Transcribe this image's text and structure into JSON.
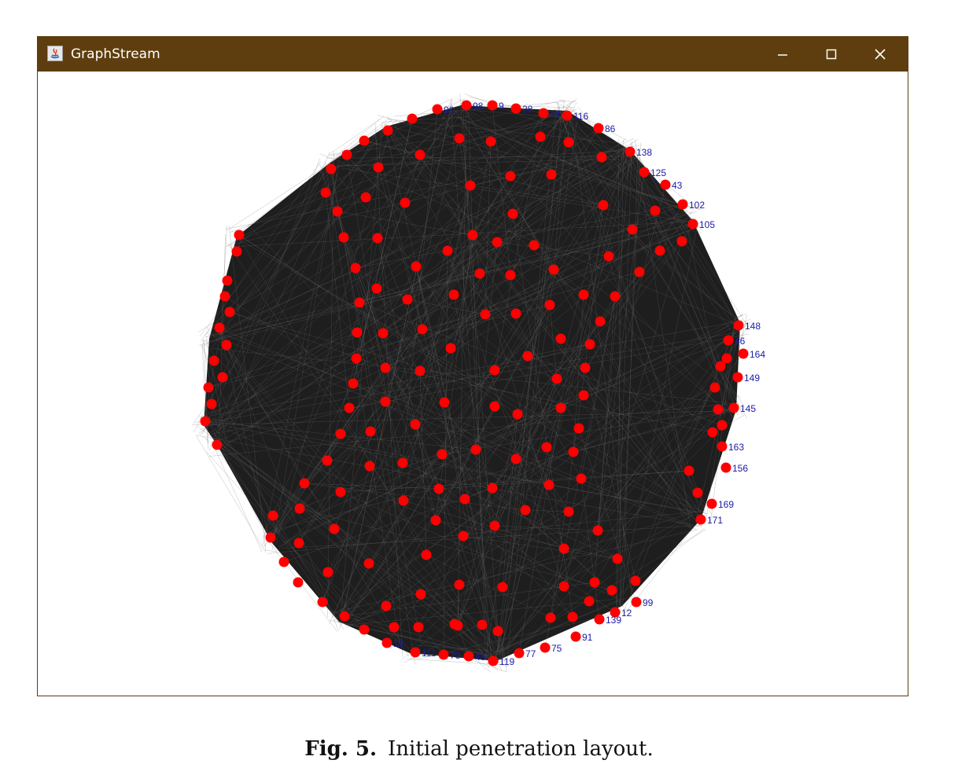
{
  "window": {
    "title": "GraphStream",
    "app_icon": "java-icon"
  },
  "controls": {
    "minimize": "minimize-icon",
    "maximize": "maximize-icon",
    "close": "close-icon"
  },
  "graph": {
    "node_color": "#ff0000",
    "label_color": "#1a1aa6",
    "edge_color": "#1e1e1e",
    "visible_labels": [
      "90",
      "98",
      "9",
      "28",
      "44",
      "116",
      "86",
      "138",
      "125",
      "43",
      "102",
      "105",
      "148",
      "46",
      "164",
      "149",
      "145",
      "163",
      "156",
      "169",
      "171",
      "99",
      "12",
      "139",
      "91",
      "75",
      "77",
      "119",
      "48",
      "73",
      "111",
      "12"
    ]
  },
  "caption": {
    "label": "Fig. 5.",
    "text": "Initial penetration layout."
  }
}
